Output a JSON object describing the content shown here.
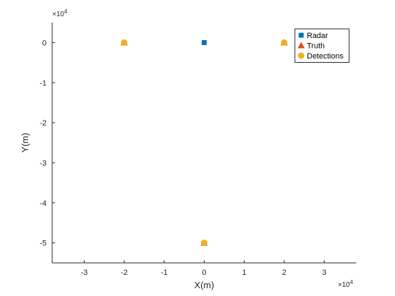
{
  "chart_data": {
    "type": "scatter",
    "xlabel": "X(m)",
    "ylabel": "Y(m)",
    "x_exponent_label": "×10",
    "x_exponent_power": "4",
    "y_exponent_label": "×10",
    "y_exponent_power": "4",
    "xlim": [
      -38000,
      38000
    ],
    "ylim": [
      -55000,
      5000
    ],
    "x_ticks": [
      -30000,
      -20000,
      -10000,
      0,
      10000,
      20000,
      30000
    ],
    "x_tick_labels": [
      "-3",
      "-2",
      "-1",
      "0",
      "1",
      "2",
      "3"
    ],
    "y_ticks": [
      0,
      -10000,
      -20000,
      -30000,
      -40000,
      -50000
    ],
    "y_tick_labels": [
      "0",
      "-1",
      "-2",
      "-3",
      "-4",
      "-5"
    ],
    "grid": false,
    "legend_position": "top-right",
    "series": [
      {
        "name": "Radar",
        "marker": "square",
        "color": "#0072BD",
        "points": [
          {
            "x": 0,
            "y": 0
          }
        ]
      },
      {
        "name": "Truth",
        "marker": "triangle",
        "color": "#D95319",
        "points": [
          {
            "x": -20000,
            "y": 0
          },
          {
            "x": 20000,
            "y": 0
          },
          {
            "x": 0,
            "y": -50000
          }
        ]
      },
      {
        "name": "Detections",
        "marker": "circle",
        "color": "#EDB120",
        "points": [
          {
            "x": -20000,
            "y": 0
          },
          {
            "x": 20000,
            "y": 0
          },
          {
            "x": 0,
            "y": -50000
          }
        ]
      }
    ]
  }
}
